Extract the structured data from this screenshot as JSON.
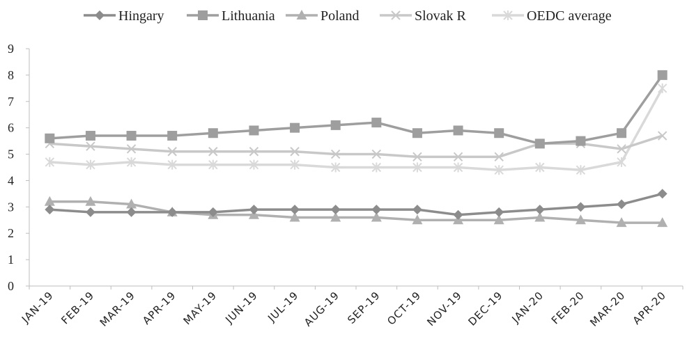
{
  "chart_data": {
    "type": "line",
    "title": "",
    "xlabel": "",
    "ylabel": "",
    "categories": [
      "JAN-19",
      "FEB-19",
      "MAR-19",
      "APR-19",
      "MAY-19",
      "JUN-19",
      "JUL-19",
      "AUG-19",
      "SEP-19",
      "OCT-19",
      "NOV-19",
      "DEC-19",
      "JAN-20",
      "FEB-20",
      "MAR-20",
      "APR-20"
    ],
    "ylim": [
      0,
      9
    ],
    "yticks": [
      "0",
      "1",
      "2",
      "3",
      "4",
      "5",
      "6",
      "7",
      "8",
      "9"
    ],
    "grid": false,
    "legend_position": "top",
    "series": [
      {
        "name": "Hingary",
        "marker": "diamond",
        "color": "#8c8c8c",
        "values": [
          2.9,
          2.8,
          2.8,
          2.8,
          2.8,
          2.9,
          2.9,
          2.9,
          2.9,
          2.9,
          2.7,
          2.8,
          2.9,
          3.0,
          3.1,
          3.5
        ]
      },
      {
        "name": "Lithuania",
        "marker": "square",
        "color": "#9e9e9e",
        "values": [
          5.6,
          5.7,
          5.7,
          5.7,
          5.8,
          5.9,
          6.0,
          6.1,
          6.2,
          5.8,
          5.9,
          5.8,
          5.4,
          5.5,
          5.8,
          8.0
        ]
      },
      {
        "name": "Poland",
        "marker": "triangle",
        "color": "#b0b0b0",
        "values": [
          3.2,
          3.2,
          3.1,
          2.8,
          2.7,
          2.7,
          2.6,
          2.6,
          2.6,
          2.5,
          2.5,
          2.5,
          2.6,
          2.5,
          2.4,
          2.4
        ]
      },
      {
        "name": "Slovak R",
        "marker": "x",
        "color": "#c8c8c8",
        "values": [
          5.4,
          5.3,
          5.2,
          5.1,
          5.1,
          5.1,
          5.1,
          5.0,
          5.0,
          4.9,
          4.9,
          4.9,
          5.4,
          5.4,
          5.2,
          5.7
        ]
      },
      {
        "name": "OEDC average",
        "marker": "asterisk",
        "color": "#d9d9d9",
        "values": [
          4.7,
          4.6,
          4.7,
          4.6,
          4.6,
          4.6,
          4.6,
          4.5,
          4.5,
          4.5,
          4.5,
          4.4,
          4.5,
          4.4,
          4.7,
          7.5
        ]
      }
    ]
  }
}
